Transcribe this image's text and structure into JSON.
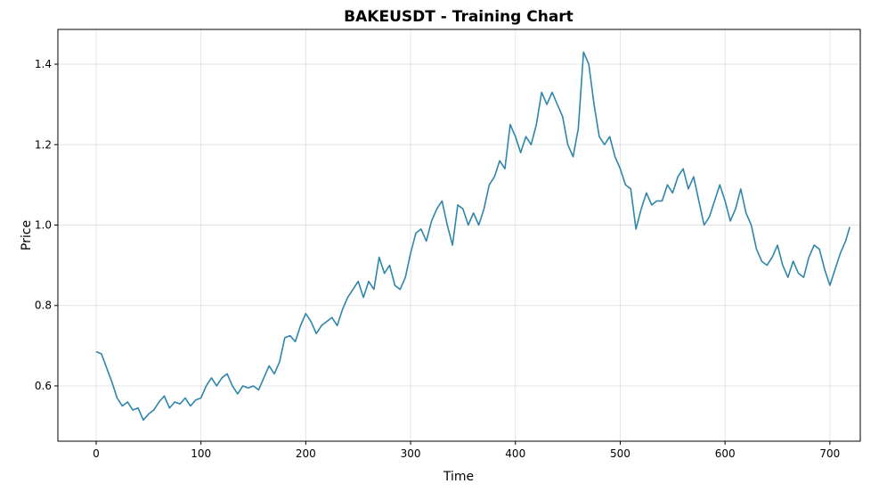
{
  "chart_data": {
    "type": "line",
    "title": "BAKEUSDT - Training Chart",
    "x_label": "Time",
    "y_label": "Price",
    "color": "#2e86ab",
    "grid": true,
    "xlim": [
      -36.5,
      729
    ],
    "ylim": [
      0.4625,
      1.4865
    ],
    "xticks": [
      0,
      100,
      200,
      300,
      400,
      500,
      600,
      700
    ],
    "yticks": [
      0.6,
      0.8,
      {
        "value": 1,
        "label": "1.0"
      },
      1.2,
      1.4
    ],
    "x": [
      0,
      5,
      10,
      15,
      20,
      25,
      30,
      35,
      40,
      45,
      50,
      55,
      60,
      65,
      70,
      75,
      80,
      85,
      90,
      95,
      100,
      105,
      110,
      115,
      120,
      125,
      130,
      135,
      140,
      145,
      150,
      155,
      160,
      165,
      170,
      175,
      180,
      185,
      190,
      195,
      200,
      205,
      210,
      215,
      220,
      225,
      230,
      235,
      240,
      245,
      250,
      255,
      260,
      265,
      270,
      275,
      280,
      285,
      290,
      295,
      300,
      305,
      310,
      315,
      320,
      325,
      330,
      335,
      340,
      345,
      350,
      355,
      360,
      365,
      370,
      375,
      380,
      385,
      390,
      395,
      400,
      405,
      410,
      415,
      420,
      425,
      430,
      435,
      440,
      445,
      450,
      455,
      460,
      465,
      470,
      475,
      480,
      485,
      490,
      495,
      500,
      505,
      510,
      515,
      520,
      525,
      530,
      535,
      540,
      545,
      550,
      555,
      560,
      565,
      570,
      575,
      580,
      585,
      590,
      595,
      600,
      605,
      610,
      615,
      620,
      625,
      630,
      635,
      640,
      645,
      650,
      655,
      660,
      665,
      670,
      675,
      680,
      685,
      690,
      695,
      700,
      705,
      710,
      715,
      719
    ],
    "values": [
      0.685,
      0.68,
      0.645,
      0.61,
      0.57,
      0.55,
      0.56,
      0.54,
      0.545,
      0.515,
      0.53,
      0.54,
      0.56,
      0.575,
      0.545,
      0.56,
      0.555,
      0.57,
      0.55,
      0.565,
      0.57,
      0.6,
      0.62,
      0.6,
      0.62,
      0.63,
      0.6,
      0.58,
      0.6,
      0.595,
      0.6,
      0.59,
      0.62,
      0.65,
      0.63,
      0.66,
      0.72,
      0.725,
      0.71,
      0.75,
      0.78,
      0.76,
      0.73,
      0.75,
      0.76,
      0.77,
      0.75,
      0.79,
      0.82,
      0.84,
      0.86,
      0.82,
      0.86,
      0.84,
      0.92,
      0.88,
      0.9,
      0.85,
      0.84,
      0.87,
      0.93,
      0.98,
      0.99,
      0.96,
      1.01,
      1.04,
      1.06,
      1.0,
      0.95,
      1.05,
      1.04,
      1.0,
      1.03,
      1.0,
      1.04,
      1.1,
      1.12,
      1.16,
      1.14,
      1.25,
      1.22,
      1.18,
      1.22,
      1.2,
      1.25,
      1.33,
      1.3,
      1.33,
      1.3,
      1.27,
      1.2,
      1.17,
      1.24,
      1.43,
      1.4,
      1.3,
      1.22,
      1.2,
      1.22,
      1.17,
      1.14,
      1.1,
      1.09,
      0.99,
      1.04,
      1.08,
      1.05,
      1.06,
      1.06,
      1.1,
      1.08,
      1.12,
      1.14,
      1.09,
      1.12,
      1.06,
      1.0,
      1.02,
      1.06,
      1.1,
      1.06,
      1.01,
      1.04,
      1.09,
      1.03,
      1.0,
      0.94,
      0.91,
      0.9,
      0.92,
      0.95,
      0.9,
      0.87,
      0.91,
      0.88,
      0.87,
      0.92,
      0.95,
      0.94,
      0.89,
      0.85,
      0.89,
      0.93,
      0.96,
      0.995
    ]
  }
}
